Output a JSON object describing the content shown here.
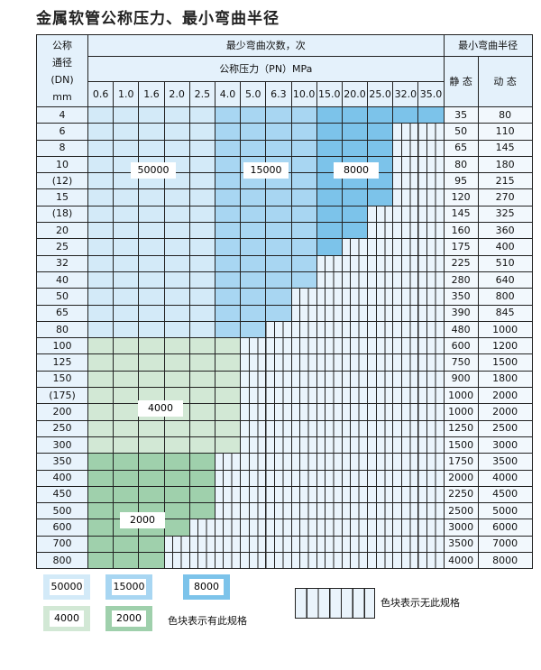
{
  "title": "金属软管公称压力、最小弯曲半径",
  "header": {
    "dn_label": [
      "公称",
      "通径",
      "(DN)",
      "mm"
    ],
    "cycles_label": "最少弯曲次数，次",
    "pn_label": "公称压力（PN）MPa",
    "radius_label": "最小弯曲半径",
    "static_label": "静 态",
    "dynamic_label": "动 态",
    "pn_values": [
      "0.6",
      "1.0",
      "1.6",
      "2.0",
      "2.5",
      "4.0",
      "5.0",
      "6.3",
      "10.0",
      "15.0",
      "20.0",
      "25.0",
      "32.0",
      "35.0"
    ]
  },
  "colors": {
    "50000": "#d3eaf8",
    "15000": "#a8d6f2",
    "8000": "#7cc3ea",
    "4000": "#d2e8d5",
    "2000": "#9fd0ac"
  },
  "blue_bands": [
    {
      "from": "0.6",
      "to": "2.5",
      "cycles": "50000"
    },
    {
      "from": "4.0",
      "to": "10.0",
      "cycles": "15000"
    },
    {
      "from": "15.0",
      "to": "35.0",
      "cycles": "8000"
    }
  ],
  "rows": [
    {
      "dn": "4",
      "max_pn": "35.0",
      "static": "35",
      "dynamic": "80"
    },
    {
      "dn": "6",
      "max_pn": "25.0",
      "static": "50",
      "dynamic": "110"
    },
    {
      "dn": "8",
      "max_pn": "25.0",
      "static": "65",
      "dynamic": "145"
    },
    {
      "dn": "10",
      "max_pn": "25.0",
      "static": "80",
      "dynamic": "180"
    },
    {
      "dn": "(12)",
      "max_pn": "25.0",
      "static": "95",
      "dynamic": "215"
    },
    {
      "dn": "15",
      "max_pn": "25.0",
      "static": "120",
      "dynamic": "270"
    },
    {
      "dn": "(18)",
      "max_pn": "20.0",
      "static": "145",
      "dynamic": "325"
    },
    {
      "dn": "20",
      "max_pn": "20.0",
      "static": "160",
      "dynamic": "360"
    },
    {
      "dn": "25",
      "max_pn": "15.0",
      "static": "175",
      "dynamic": "400"
    },
    {
      "dn": "32",
      "max_pn": "10.0",
      "static": "225",
      "dynamic": "510"
    },
    {
      "dn": "40",
      "max_pn": "10.0",
      "static": "280",
      "dynamic": "640"
    },
    {
      "dn": "50",
      "max_pn": "6.3",
      "static": "350",
      "dynamic": "800"
    },
    {
      "dn": "65",
      "max_pn": "6.3",
      "static": "390",
      "dynamic": "845"
    },
    {
      "dn": "80",
      "max_pn": "5.0",
      "static": "480",
      "dynamic": "1000"
    },
    {
      "dn": "100",
      "max_pn": "4.0",
      "static": "600",
      "dynamic": "1200",
      "cycles": "4000"
    },
    {
      "dn": "125",
      "max_pn": "4.0",
      "static": "750",
      "dynamic": "1500",
      "cycles": "4000"
    },
    {
      "dn": "150",
      "max_pn": "4.0",
      "static": "900",
      "dynamic": "1800",
      "cycles": "4000"
    },
    {
      "dn": "(175)",
      "max_pn": "4.0",
      "static": "1000",
      "dynamic": "2000",
      "cycles": "4000"
    },
    {
      "dn": "200",
      "max_pn": "4.0",
      "static": "1000",
      "dynamic": "2000",
      "cycles": "4000"
    },
    {
      "dn": "250",
      "max_pn": "4.0",
      "static": "1250",
      "dynamic": "2500",
      "cycles": "4000"
    },
    {
      "dn": "300",
      "max_pn": "4.0",
      "static": "1500",
      "dynamic": "3000",
      "cycles": "4000"
    },
    {
      "dn": "350",
      "max_pn": "2.5",
      "static": "1750",
      "dynamic": "3500",
      "cycles": "2000"
    },
    {
      "dn": "400",
      "max_pn": "2.5",
      "static": "2000",
      "dynamic": "4000",
      "cycles": "2000"
    },
    {
      "dn": "450",
      "max_pn": "2.5",
      "static": "2250",
      "dynamic": "4500",
      "cycles": "2000"
    },
    {
      "dn": "500",
      "max_pn": "2.5",
      "static": "2500",
      "dynamic": "5000",
      "cycles": "2000"
    },
    {
      "dn": "600",
      "max_pn": "2.0",
      "static": "3000",
      "dynamic": "6000",
      "cycles": "2000"
    },
    {
      "dn": "700",
      "max_pn": "1.6",
      "static": "3500",
      "dynamic": "7000",
      "cycles": "2000"
    },
    {
      "dn": "800",
      "max_pn": "1.6",
      "static": "4000",
      "dynamic": "8000",
      "cycles": "2000"
    }
  ],
  "region_labels": {
    "a": "50000",
    "b": "15000",
    "c": "8000",
    "d": "4000",
    "e": "2000"
  },
  "legend": {
    "items": [
      "50000",
      "15000",
      "8000",
      "4000",
      "2000"
    ],
    "available_text": "色块表示有此规格",
    "unavailable_text": "色块表示无此规格"
  }
}
